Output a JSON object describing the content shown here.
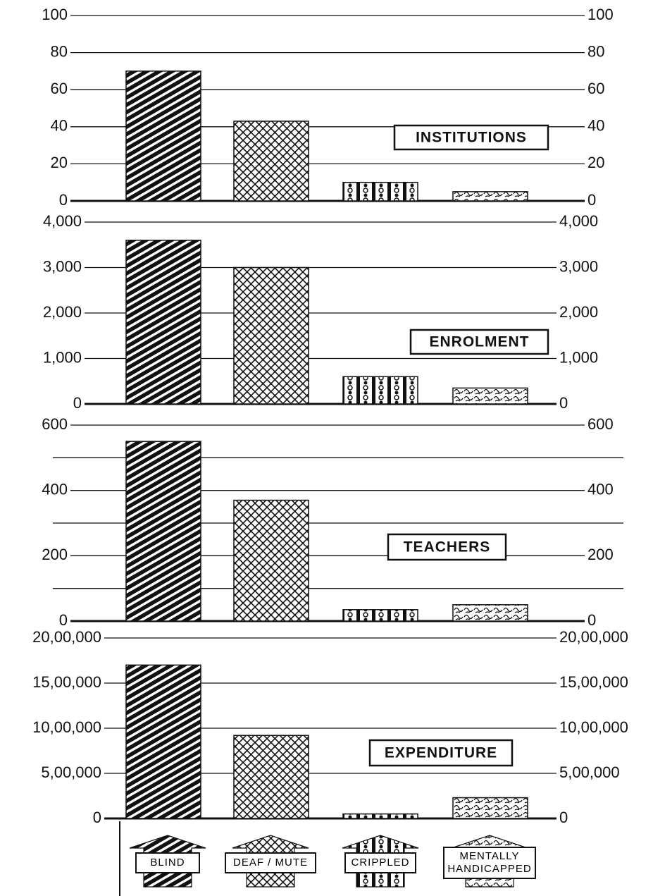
{
  "chart_data": [
    {
      "type": "bar",
      "title": "INSTITUTIONS",
      "values": [
        70,
        43,
        10,
        5
      ],
      "ylim": [
        0,
        100
      ],
      "yticks": [
        0,
        20,
        40,
        60,
        80,
        100
      ]
    },
    {
      "type": "bar",
      "title": "ENROLMENT",
      "values": [
        3600,
        3000,
        600,
        350
      ],
      "ylim": [
        0,
        4000
      ],
      "yticks": [
        0,
        {
          "value": 1000,
          "label": "1,000"
        },
        {
          "value": 2000,
          "label": "2,000"
        },
        {
          "value": 3000,
          "label": "3,000"
        },
        {
          "value": 4000,
          "label": "4,000"
        }
      ]
    },
    {
      "type": "bar",
      "title": "TEACHERS",
      "values": [
        550,
        370,
        35,
        50
      ],
      "ylim": [
        0,
        600
      ],
      "yticks": [
        0,
        200,
        400,
        600
      ],
      "minor_yticks": [
        100,
        300,
        500
      ]
    },
    {
      "type": "bar",
      "title": "EXPENDITURE",
      "values": [
        1700000,
        920000,
        50000,
        230000
      ],
      "ylim": [
        0,
        2000000
      ],
      "yticks": [
        0,
        {
          "value": 500000,
          "label": "5,00,000"
        },
        {
          "value": 1000000,
          "label": "10,00,000"
        },
        {
          "value": 1500000,
          "label": "15,00,000"
        },
        {
          "value": 2000000,
          "label": "20,00,000"
        }
      ]
    }
  ],
  "legend": [
    "BLIND",
    "DEAF / MUTE",
    "CRIPPLED",
    "MENTALLY HANDICAPPED"
  ]
}
